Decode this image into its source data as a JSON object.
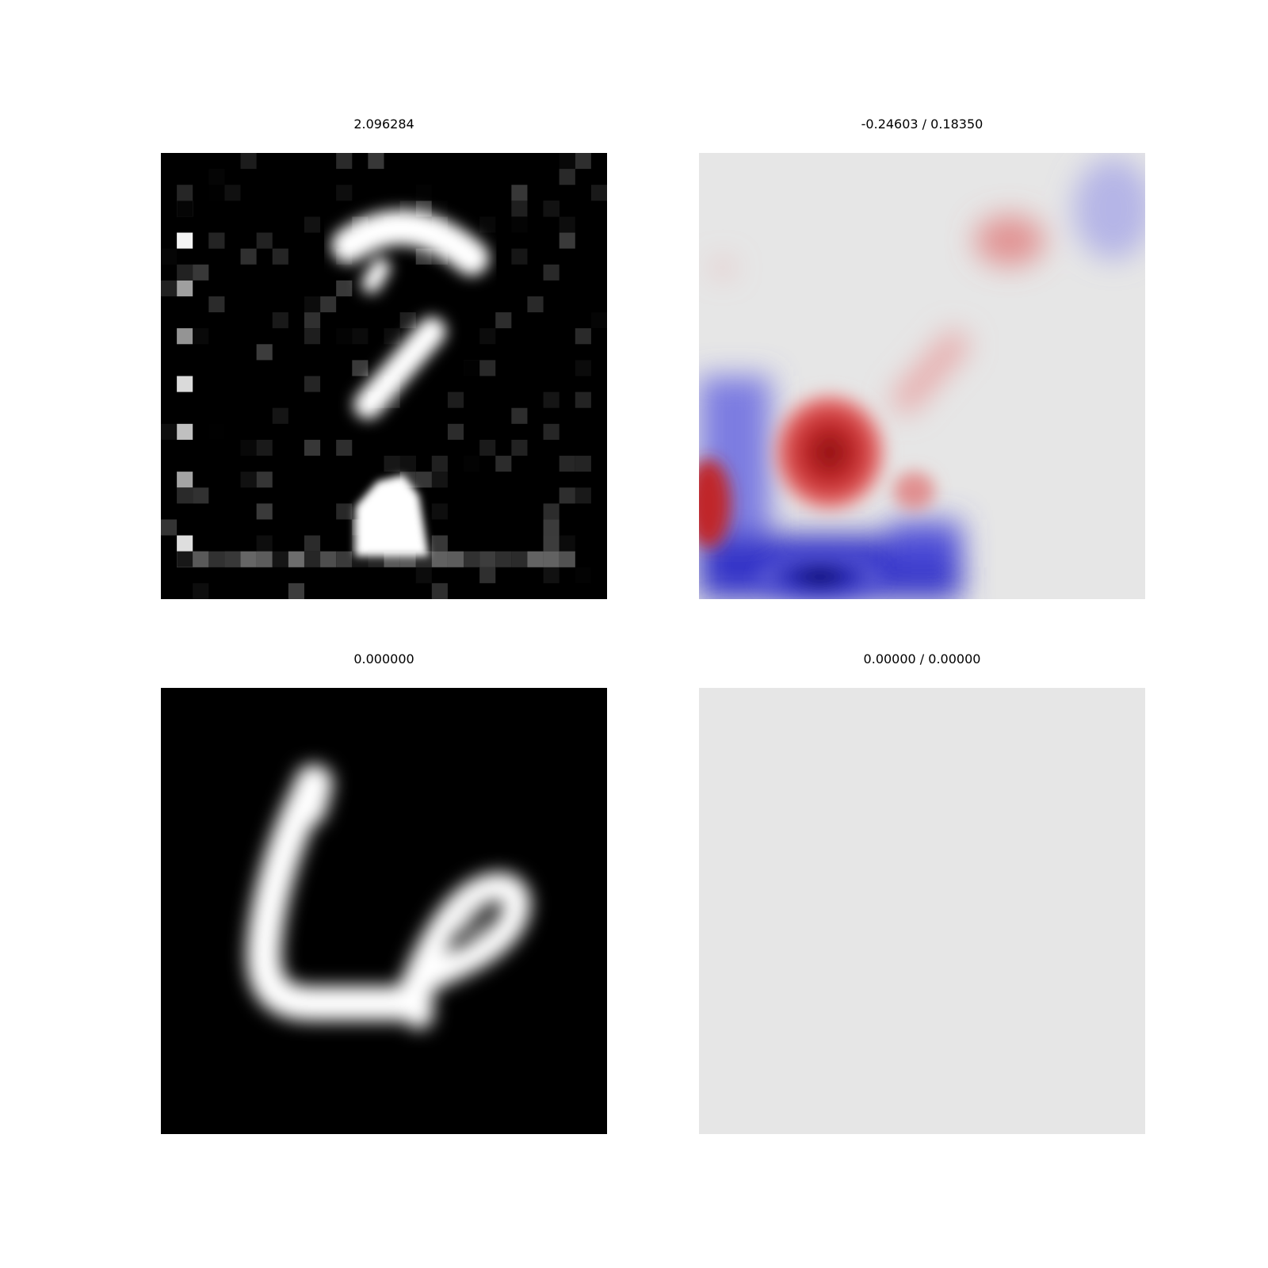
{
  "chart_data": [
    {
      "type": "heatmap",
      "title": "2.096284",
      "colormap": "gray",
      "description_of_content": "noisy reconstructed MNIST-like digit (resembles 7/question mark)"
    },
    {
      "type": "heatmap",
      "title": "-0.24603 / 0.18350",
      "colormap": "bwr",
      "vmin": -0.24603,
      "vmax": 0.1835
    },
    {
      "type": "heatmap",
      "title": "0.000000",
      "colormap": "gray",
      "description_of_content": "MNIST digit 6"
    },
    {
      "type": "heatmap",
      "title": "0.00000 / 0.00000",
      "colormap": "bwr",
      "vmin": 0.0,
      "vmax": 0.0
    }
  ],
  "colors": {
    "background": "#ffffff",
    "black": "#000000",
    "white": "#ffffff",
    "red": "#d62728",
    "dark_red": "#8b1a1a",
    "blue": "#3a3ad0",
    "dark_blue": "#0a0a6a",
    "neutral": "#e6e6e6"
  }
}
